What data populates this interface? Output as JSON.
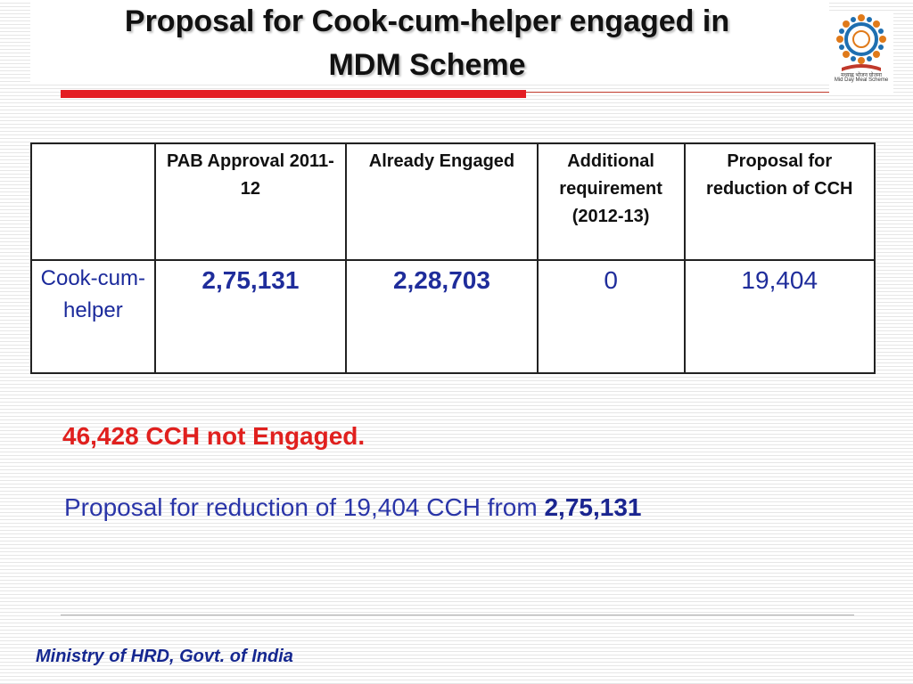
{
  "title": {
    "line1": "Proposal for Cook-cum-helper engaged in",
    "line2": "MDM Scheme"
  },
  "logo": {
    "caption_hindi": "मध्याह्न भोजन योजना",
    "caption": "Mid Day Meal Scheme",
    "colors": {
      "ring": "#1f6fb0",
      "figures": "#e07a1a",
      "book": "#c0392b"
    }
  },
  "table": {
    "headers": [
      "",
      "PAB Approval 2011-12",
      "Already Engaged",
      "Additional requirement (2012-13)",
      "Proposal for reduction of CCH"
    ],
    "rows": [
      {
        "label": "Cook-cum-helper",
        "pab_approval": "2,75,131",
        "already_engaged": "2,28,703",
        "additional_requirement": "0",
        "proposal_reduction": "19,404"
      }
    ]
  },
  "notes": {
    "not_engaged": "46,428 CCH not Engaged.",
    "proposal_text": "Proposal for reduction of 19,404 CCH from",
    "proposal_from": "2,75,131"
  },
  "footer": "Ministry of HRD, Govt. of India",
  "colors": {
    "accent_red": "#e41d23",
    "text_blue": "#1f2d9b",
    "footer_blue": "#152790"
  }
}
